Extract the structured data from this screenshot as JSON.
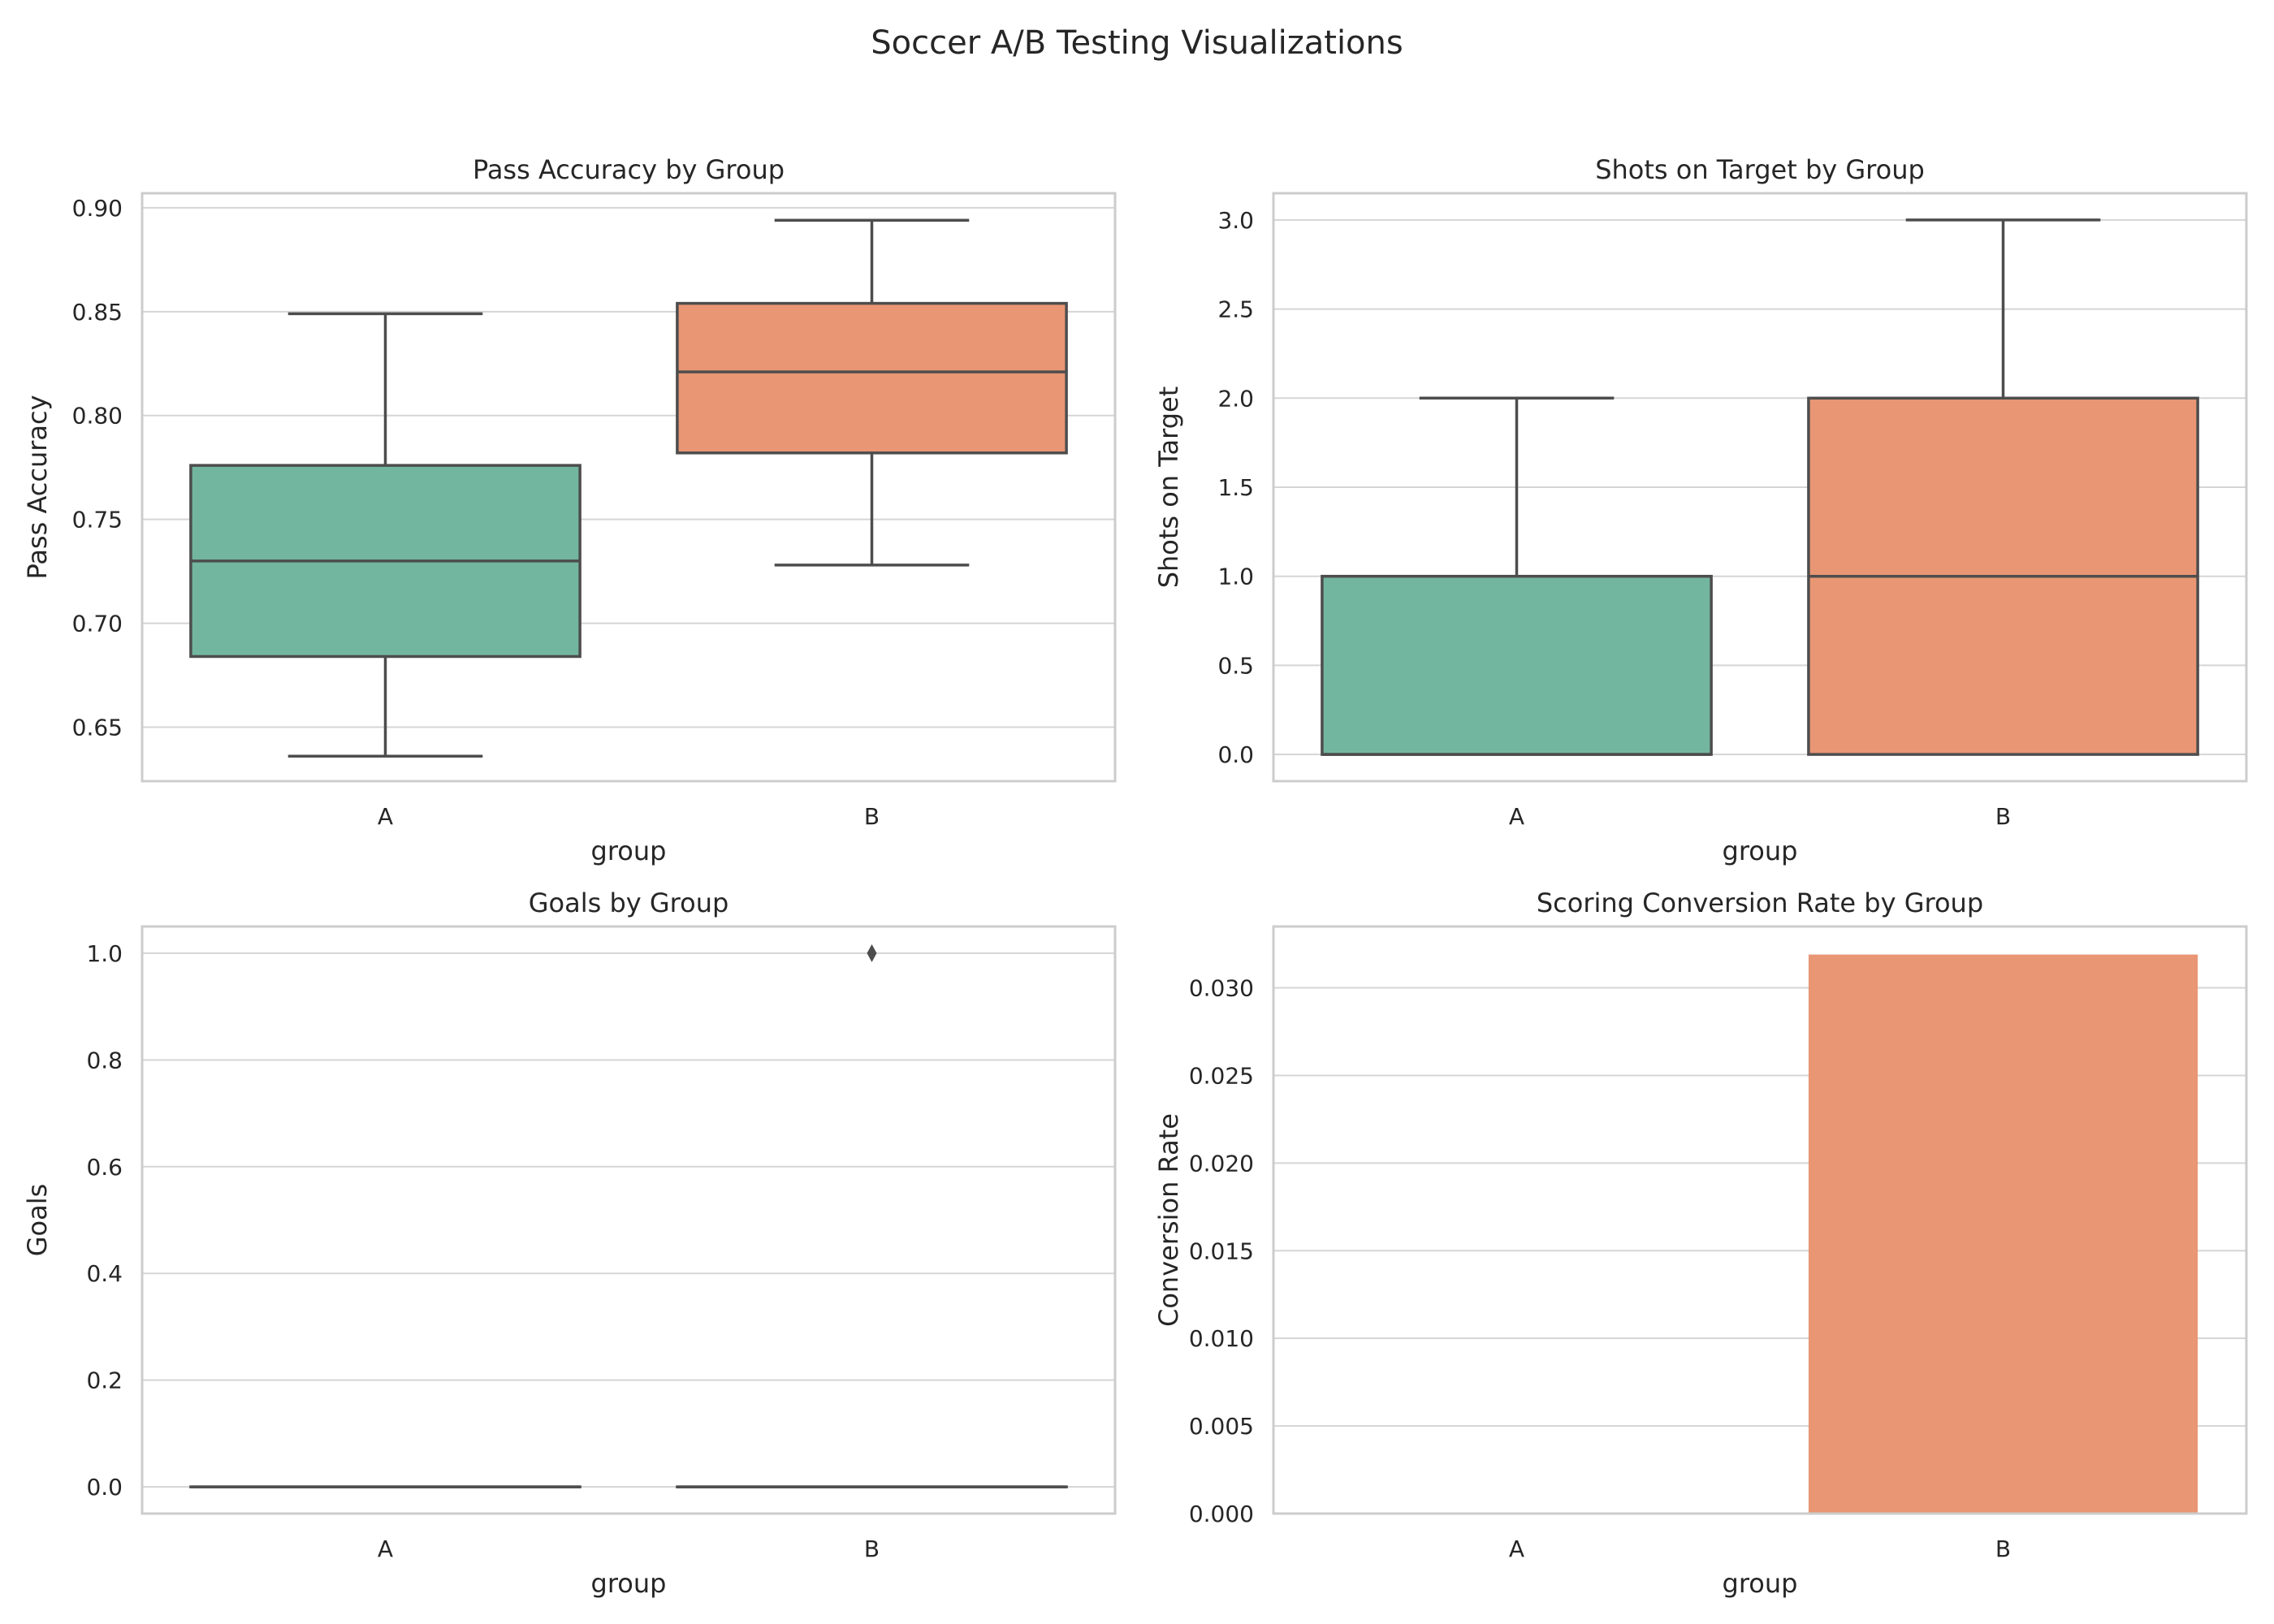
{
  "title": "Soccer A/B Testing Visualizations",
  "colors": {
    "A": "#73b6a0",
    "B": "#e99674",
    "line": "#4d4d4d",
    "grid": "#d5d5d5",
    "frame": "#cccccc"
  },
  "chart_data": [
    {
      "type": "box",
      "title": "Pass Accuracy by Group",
      "xlabel": "group",
      "ylabel": "Pass Accuracy",
      "categories": [
        "A",
        "B"
      ],
      "ylim": [
        0.624,
        0.907
      ],
      "yticks": [
        0.65,
        0.7,
        0.75,
        0.8,
        0.85,
        0.9
      ],
      "ytick_labels": [
        "0.65",
        "0.70",
        "0.75",
        "0.80",
        "0.85",
        "0.90"
      ],
      "grid": true,
      "boxes": [
        {
          "group": "A",
          "whislo": 0.636,
          "q1": 0.684,
          "med": 0.73,
          "q3": 0.776,
          "whishi": 0.849,
          "fliers": []
        },
        {
          "group": "B",
          "whislo": 0.728,
          "q1": 0.782,
          "med": 0.821,
          "q3": 0.854,
          "whishi": 0.894,
          "fliers": []
        }
      ]
    },
    {
      "type": "box",
      "title": "Shots on Target by Group",
      "xlabel": "group",
      "ylabel": "Shots on Target",
      "categories": [
        "A",
        "B"
      ],
      "ylim": [
        -0.15,
        3.15
      ],
      "yticks": [
        0.0,
        0.5,
        1.0,
        1.5,
        2.0,
        2.5,
        3.0
      ],
      "ytick_labels": [
        "0.0",
        "0.5",
        "1.0",
        "1.5",
        "2.0",
        "2.5",
        "3.0"
      ],
      "grid": true,
      "boxes": [
        {
          "group": "A",
          "whislo": 0.0,
          "q1": 0.0,
          "med": 0.0,
          "q3": 1.0,
          "whishi": 2.0,
          "fliers": []
        },
        {
          "group": "B",
          "whislo": 0.0,
          "q1": 0.0,
          "med": 1.0,
          "q3": 2.0,
          "whishi": 3.0,
          "fliers": []
        }
      ]
    },
    {
      "type": "box",
      "title": "Goals by Group",
      "xlabel": "group",
      "ylabel": "Goals",
      "categories": [
        "A",
        "B"
      ],
      "ylim": [
        -0.05,
        1.05
      ],
      "yticks": [
        0.0,
        0.2,
        0.4,
        0.6,
        0.8,
        1.0
      ],
      "ytick_labels": [
        "0.0",
        "0.2",
        "0.4",
        "0.6",
        "0.8",
        "1.0"
      ],
      "grid": true,
      "boxes": [
        {
          "group": "A",
          "whislo": 0.0,
          "q1": 0.0,
          "med": 0.0,
          "q3": 0.0,
          "whishi": 0.0,
          "fliers": []
        },
        {
          "group": "B",
          "whislo": 0.0,
          "q1": 0.0,
          "med": 0.0,
          "q3": 0.0,
          "whishi": 0.0,
          "fliers": [
            1.0
          ]
        }
      ]
    },
    {
      "type": "bar",
      "title": "Scoring Conversion Rate by Group",
      "xlabel": "group",
      "ylabel": "Conversion Rate",
      "categories": [
        "A",
        "B"
      ],
      "values": [
        0.0,
        0.0319
      ],
      "ylim": [
        0.0,
        0.0335
      ],
      "yticks": [
        0.0,
        0.005,
        0.01,
        0.015,
        0.02,
        0.025,
        0.03
      ],
      "ytick_labels": [
        "0.000",
        "0.005",
        "0.010",
        "0.015",
        "0.020",
        "0.025",
        "0.030"
      ],
      "grid": true
    }
  ]
}
